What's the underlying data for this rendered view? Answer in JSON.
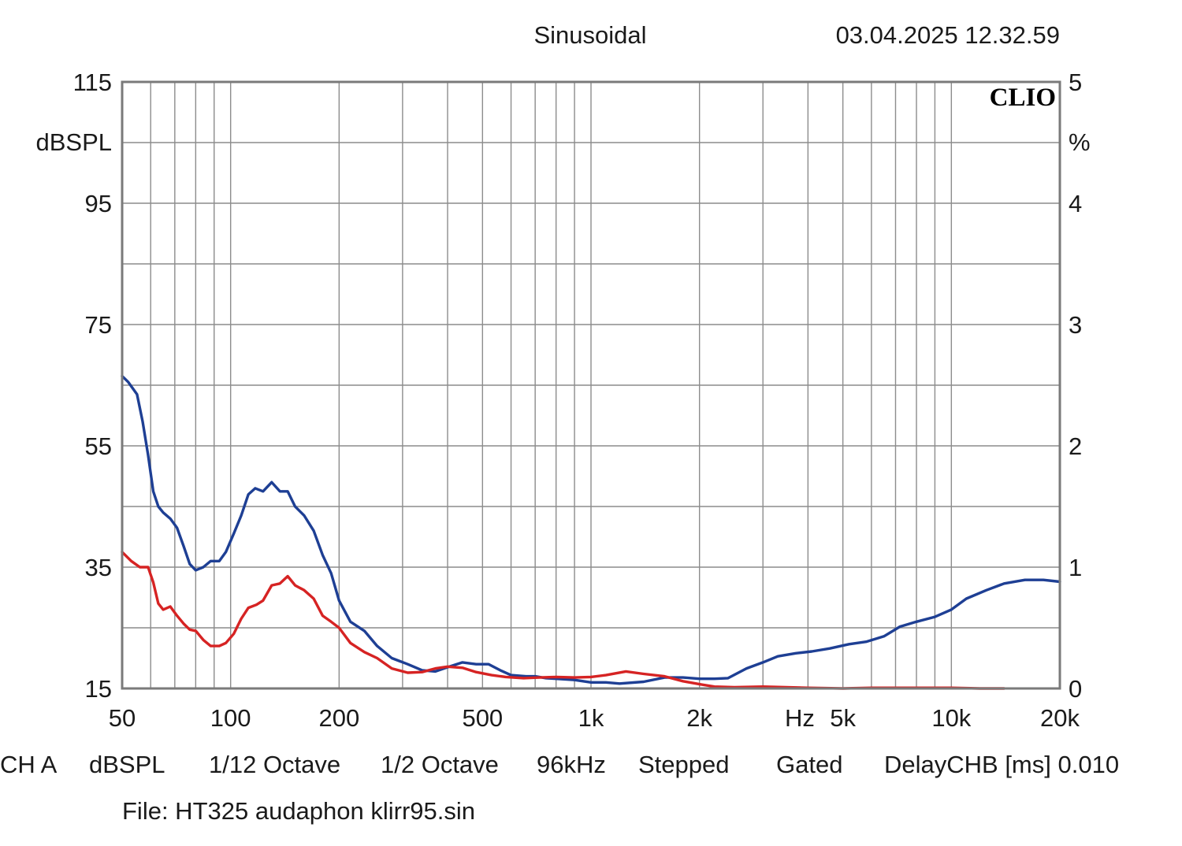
{
  "header": {
    "mode": "Sinusoidal",
    "timestamp": "03.04.2025 12.32.59"
  },
  "brand": "CLIO",
  "colors": {
    "plot_border": "#7a7a7a",
    "grid": "#8c8c8c",
    "series_blue": "#1e3f94",
    "series_red": "#d62323"
  },
  "chart_data": {
    "type": "line",
    "x_scale": "log",
    "xlim": [
      50,
      20000
    ],
    "ylim_left": [
      15,
      115
    ],
    "ylim_right": [
      0,
      5
    ],
    "left_unit_label": "dBSPL",
    "right_unit_label": "%",
    "x_unit_label": "Hz",
    "grid": true,
    "y_ticks_left": [
      {
        "value": 115,
        "label": "115"
      },
      {
        "value": 95,
        "label": "95"
      },
      {
        "value": 75,
        "label": "75"
      },
      {
        "value": 55,
        "label": "55"
      },
      {
        "value": 35,
        "label": "35"
      },
      {
        "value": 15,
        "label": "15"
      }
    ],
    "y_ticks_right": [
      {
        "value": 5,
        "label": "5"
      },
      {
        "value": 4,
        "label": "4"
      },
      {
        "value": 3,
        "label": "3"
      },
      {
        "value": 2,
        "label": "2"
      },
      {
        "value": 1,
        "label": "1"
      },
      {
        "value": 0,
        "label": "0"
      }
    ],
    "x_ticks": [
      {
        "value": 50,
        "label": "50"
      },
      {
        "value": 100,
        "label": "100"
      },
      {
        "value": 200,
        "label": "200"
      },
      {
        "value": 500,
        "label": "500"
      },
      {
        "value": 1000,
        "label": "1k"
      },
      {
        "value": 2000,
        "label": "2k"
      },
      {
        "value": 5000,
        "label": "5k"
      },
      {
        "value": 10000,
        "label": "10k"
      },
      {
        "value": 20000,
        "label": "20k"
      }
    ],
    "series": [
      {
        "color": "#1e3f94",
        "axis": "left",
        "points": [
          [
            50,
            66.5
          ],
          [
            52,
            65.5
          ],
          [
            55,
            63.5
          ],
          [
            57,
            59
          ],
          [
            59,
            53.5
          ],
          [
            61,
            47.5
          ],
          [
            63,
            45
          ],
          [
            65,
            44
          ],
          [
            68,
            43
          ],
          [
            71,
            41.5
          ],
          [
            74,
            38.5
          ],
          [
            77,
            35.5
          ],
          [
            80,
            34.5
          ],
          [
            84,
            35
          ],
          [
            88,
            36
          ],
          [
            93,
            36
          ],
          [
            97,
            37.5
          ],
          [
            102,
            40.5
          ],
          [
            107,
            43.5
          ],
          [
            112,
            47
          ],
          [
            117,
            48
          ],
          [
            123,
            47.5
          ],
          [
            130,
            49
          ],
          [
            137,
            47.5
          ],
          [
            144,
            47.5
          ],
          [
            151,
            45
          ],
          [
            160,
            43.5
          ],
          [
            170,
            41
          ],
          [
            180,
            37
          ],
          [
            190,
            34
          ],
          [
            200,
            29.5
          ],
          [
            215,
            26
          ],
          [
            235,
            24.5
          ],
          [
            255,
            22
          ],
          [
            280,
            20
          ],
          [
            310,
            19
          ],
          [
            340,
            18
          ],
          [
            370,
            17.8
          ],
          [
            400,
            18.5
          ],
          [
            440,
            19.3
          ],
          [
            480,
            19
          ],
          [
            520,
            19
          ],
          [
            560,
            18
          ],
          [
            600,
            17.2
          ],
          [
            660,
            17
          ],
          [
            700,
            17
          ],
          [
            750,
            16.7
          ],
          [
            800,
            16.6
          ],
          [
            900,
            16.4
          ],
          [
            1000,
            16
          ],
          [
            1100,
            16
          ],
          [
            1200,
            15.8
          ],
          [
            1400,
            16.1
          ],
          [
            1600,
            16.8
          ],
          [
            1800,
            16.8
          ],
          [
            2000,
            16.6
          ],
          [
            2200,
            16.6
          ],
          [
            2400,
            16.7
          ],
          [
            2700,
            18.3
          ],
          [
            3000,
            19.3
          ],
          [
            3300,
            20.3
          ],
          [
            3700,
            20.8
          ],
          [
            4100,
            21.1
          ],
          [
            4600,
            21.6
          ],
          [
            5200,
            22.3
          ],
          [
            5800,
            22.7
          ],
          [
            6500,
            23.6
          ],
          [
            7200,
            25.2
          ],
          [
            8000,
            26
          ],
          [
            9000,
            26.8
          ],
          [
            10000,
            28
          ],
          [
            11000,
            29.8
          ],
          [
            12500,
            31.2
          ],
          [
            14000,
            32.3
          ],
          [
            16000,
            32.9
          ],
          [
            18000,
            32.9
          ],
          [
            20000,
            32.6
          ]
        ]
      },
      {
        "color": "#d62323",
        "axis": "left",
        "points": [
          [
            50,
            37.5
          ],
          [
            53,
            36
          ],
          [
            56,
            35
          ],
          [
            59,
            35
          ],
          [
            61,
            32.5
          ],
          [
            63,
            29
          ],
          [
            65,
            28
          ],
          [
            68,
            28.5
          ],
          [
            71,
            27
          ],
          [
            74,
            25.7
          ],
          [
            77,
            24.7
          ],
          [
            80,
            24.5
          ],
          [
            84,
            23
          ],
          [
            88,
            22
          ],
          [
            93,
            22
          ],
          [
            97,
            22.5
          ],
          [
            102,
            24
          ],
          [
            107,
            26.5
          ],
          [
            112,
            28.3
          ],
          [
            118,
            28.8
          ],
          [
            123,
            29.5
          ],
          [
            130,
            32
          ],
          [
            137,
            32.3
          ],
          [
            144,
            33.5
          ],
          [
            151,
            32
          ],
          [
            160,
            31.2
          ],
          [
            170,
            29.8
          ],
          [
            180,
            27
          ],
          [
            190,
            26
          ],
          [
            200,
            25
          ],
          [
            215,
            22.5
          ],
          [
            235,
            21
          ],
          [
            255,
            20
          ],
          [
            280,
            18.3
          ],
          [
            310,
            17.6
          ],
          [
            340,
            17.7
          ],
          [
            370,
            18.3
          ],
          [
            400,
            18.6
          ],
          [
            440,
            18.4
          ],
          [
            480,
            17.7
          ],
          [
            530,
            17.2
          ],
          [
            580,
            16.9
          ],
          [
            650,
            16.7
          ],
          [
            720,
            16.8
          ],
          [
            800,
            16.9
          ],
          [
            900,
            16.8
          ],
          [
            1000,
            16.9
          ],
          [
            1100,
            17.2
          ],
          [
            1250,
            17.8
          ],
          [
            1400,
            17.4
          ],
          [
            1600,
            17
          ],
          [
            1800,
            16.2
          ],
          [
            2000,
            15.7
          ],
          [
            2200,
            15.3
          ],
          [
            2500,
            15.2
          ],
          [
            3000,
            15.3
          ],
          [
            4000,
            15.1
          ],
          [
            5000,
            15
          ],
          [
            6000,
            15.1
          ],
          [
            8000,
            15.1
          ],
          [
            10000,
            15.1
          ],
          [
            12000,
            15
          ],
          [
            14000,
            15
          ]
        ]
      }
    ]
  },
  "footer": {
    "row1": [
      "CH A",
      "dBSPL",
      "1/12 Octave",
      "1/2 Octave",
      "96kHz",
      "Stepped",
      "Gated",
      "DelayCHB [ms] 0.010"
    ],
    "file": "File: HT325 audaphon klirr95.sin"
  }
}
